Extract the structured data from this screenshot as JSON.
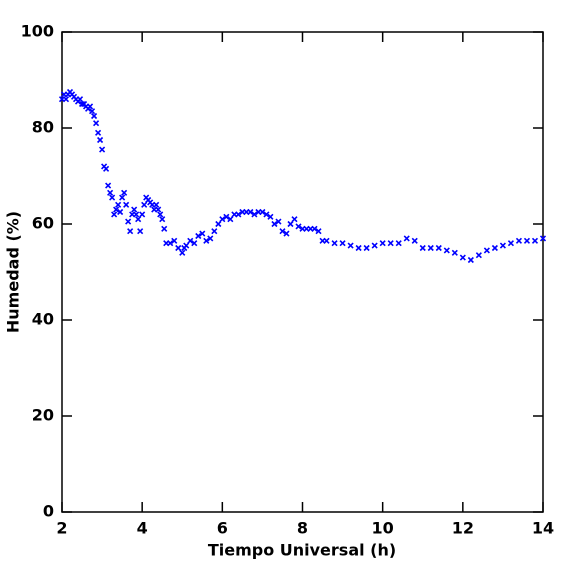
{
  "chart_data": {
    "type": "scatter",
    "x_label": "Tiempo Universal (h)",
    "y_label": "Humedad (%)",
    "xlim": [
      2,
      14
    ],
    "xticks": [
      2,
      4,
      6,
      8,
      10,
      12,
      14
    ],
    "ylim": [
      0,
      100
    ],
    "yticks": [
      0,
      20,
      40,
      60,
      80,
      100
    ],
    "color": "#0000ff",
    "x": [
      2.0,
      2.05,
      2.1,
      2.15,
      2.2,
      2.25,
      2.3,
      2.35,
      2.4,
      2.45,
      2.5,
      2.55,
      2.6,
      2.65,
      2.7,
      2.75,
      2.8,
      2.85,
      2.9,
      2.95,
      3.0,
      3.05,
      3.1,
      3.15,
      3.2,
      3.25,
      3.3,
      3.35,
      3.4,
      3.45,
      3.5,
      3.55,
      3.6,
      3.65,
      3.7,
      3.75,
      3.8,
      3.85,
      3.9,
      3.95,
      4.0,
      4.05,
      4.1,
      4.15,
      4.2,
      4.25,
      4.3,
      4.35,
      4.4,
      4.45,
      4.5,
      4.55,
      4.6,
      4.7,
      4.8,
      4.9,
      5.0,
      5.05,
      5.1,
      5.2,
      5.3,
      5.4,
      5.5,
      5.6,
      5.7,
      5.8,
      5.9,
      6.0,
      6.1,
      6.2,
      6.3,
      6.4,
      6.5,
      6.6,
      6.7,
      6.8,
      6.9,
      7.0,
      7.1,
      7.2,
      7.3,
      7.4,
      7.5,
      7.6,
      7.7,
      7.8,
      7.9,
      8.0,
      8.1,
      8.2,
      8.3,
      8.4,
      8.5,
      8.6,
      8.8,
      9.0,
      9.2,
      9.4,
      9.6,
      9.8,
      10.0,
      10.2,
      10.4,
      10.6,
      10.8,
      11.0,
      11.2,
      11.4,
      11.6,
      11.8,
      12.0,
      12.2,
      12.4,
      12.6,
      12.8,
      13.0,
      13.2,
      13.4,
      13.6,
      13.8,
      14.0
    ],
    "y": [
      86,
      87,
      86,
      87,
      87.5,
      87,
      86.5,
      86,
      85.5,
      86,
      85,
      85,
      84.5,
      84,
      84.5,
      83.5,
      82.5,
      81,
      79,
      77.5,
      75.5,
      72,
      71.5,
      68,
      66.5,
      65.5,
      62,
      63,
      64,
      62.5,
      65.5,
      66.5,
      64,
      60.5,
      58.5,
      62,
      63,
      62,
      61,
      58.5,
      62,
      64,
      65.5,
      65,
      64.5,
      64,
      63,
      64,
      63,
      62,
      61,
      59,
      56,
      56,
      56.5,
      55,
      54,
      55,
      55.5,
      56.5,
      56,
      57.5,
      58,
      56.5,
      57,
      58.5,
      60,
      61,
      61.5,
      61,
      62,
      62,
      62.5,
      62.5,
      62.5,
      62,
      62.5,
      62.5,
      62,
      61.5,
      60,
      60.5,
      58.5,
      58,
      60,
      61,
      59.5,
      59,
      59,
      59,
      59,
      58.5,
      56.5,
      56.5,
      56,
      56,
      55.5,
      55,
      55,
      55.5,
      56,
      56,
      56,
      57,
      56.5,
      55,
      55,
      55,
      54.5,
      54,
      53,
      52.5,
      53.5,
      54.5,
      55,
      55.5,
      56,
      56.5,
      56.5,
      56.5,
      57
    ]
  }
}
